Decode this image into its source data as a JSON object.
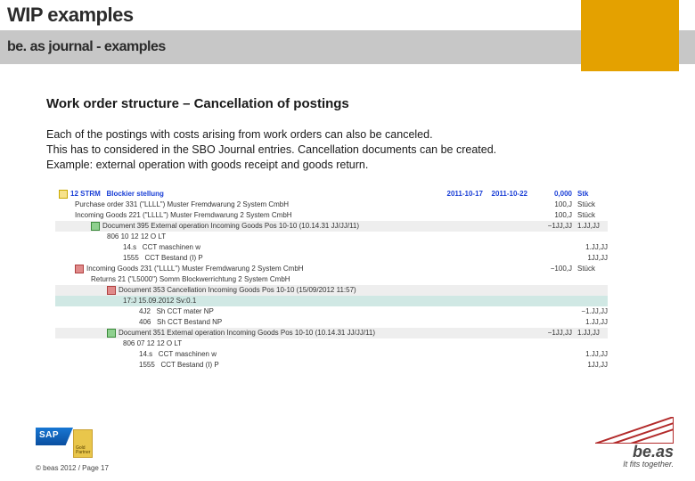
{
  "header": {
    "title": "WIP examples",
    "subtitle": "be. as journal - examples",
    "accent_color": "#e4a100"
  },
  "section": {
    "heading": "Work order structure – Cancellation of postings",
    "para1": "Each of the postings with costs arising from work orders can also be canceled.",
    "para2": "This has to considered in the SBO Journal entries. Cancellation documents can be created.",
    "para3": "Example: external operation with goods receipt and goods return."
  },
  "tree": {
    "rows": [
      {
        "ind": 0,
        "icon": "doc",
        "label": "12 STRM",
        "mid": "Blockier stellung",
        "c1": "2011-10-17",
        "c2": "2011-10-22",
        "num": "0,000",
        "unit": "Stk",
        "cls": "hl-blue"
      },
      {
        "ind": 1,
        "icon": "",
        "label": "Purchase order 331 (\"LLLL\") Muster Fremdwarung 2 System CmbH",
        "num": "100,J",
        "unit": "Stück"
      },
      {
        "ind": 1,
        "icon": "",
        "label": "Incoming Goods 221 (\"LLLL\") Muster Fremdwarung 2 System CmbH",
        "num": "100,J",
        "unit": "Stück"
      },
      {
        "ind": 2,
        "icon": "grn",
        "label": "Document 395 External operation Incoming Goods Pos 10-10 (10.14.31 JJ/JJ/11)",
        "num": "−1JJ,JJ",
        "unit": "1.JJ,JJ",
        "cls": "hl-row-gray"
      },
      {
        "ind": 3,
        "icon": "",
        "label": "806 10 12 12 O LT"
      },
      {
        "ind": 4,
        "icon": "",
        "label": "14.s",
        "mid": "CCT maschinen w",
        "num": "1.JJ,JJ"
      },
      {
        "ind": 4,
        "icon": "",
        "label": "1555",
        "mid": "CCT Bestand (I) P",
        "num": "1JJ,JJ"
      },
      {
        "ind": 1,
        "icon": "red",
        "label": "Incoming Goods 231 (\"LLLL\") Muster Fremdwarung 2 System CmbH",
        "num": "−100,J",
        "unit": "Stück"
      },
      {
        "ind": 2,
        "icon": "",
        "label": "Returns 21 (\"L5000\") Somm Blockwerrichtung 2 System CmbH"
      },
      {
        "ind": 3,
        "icon": "red",
        "label": "Document 353 Cancellation Incoming Goods Pos 10-10 (15/09/2012 11:57)",
        "cls": "hl-row-gray"
      },
      {
        "ind": 4,
        "icon": "",
        "label": "17:J 15.09.2012 Sv:0.1",
        "cls": "hl-row-teal"
      },
      {
        "ind": 5,
        "icon": "",
        "label": "4J2",
        "mid": "Sh CCT mater NP",
        "num": "−1.JJ,JJ"
      },
      {
        "ind": 5,
        "icon": "",
        "label": "406",
        "mid": "Sh CCT Bestand NP",
        "num": "1.JJ,JJ"
      },
      {
        "ind": 3,
        "icon": "grn",
        "label": "Document 351 External operation Incoming Goods Pos 10-10 (10.14.31 JJ/JJ/11)",
        "num": "−1JJ,JJ",
        "unit": "1.JJ,JJ",
        "cls": "hl-row-gray"
      },
      {
        "ind": 4,
        "icon": "",
        "label": "806 07 12 12 O LT"
      },
      {
        "ind": 5,
        "icon": "",
        "label": "14.s",
        "mid": "CCT maschinen w",
        "num": "1.JJ,JJ"
      },
      {
        "ind": 5,
        "icon": "",
        "label": "1555",
        "mid": "CCT Bestand (I) P",
        "num": "1JJ,JJ"
      }
    ]
  },
  "footer": {
    "copyright": "© beas 2012 / Page 17",
    "beas_name": "be.as",
    "beas_tag": "It fits together.",
    "tri_color": "#b22a2a"
  }
}
